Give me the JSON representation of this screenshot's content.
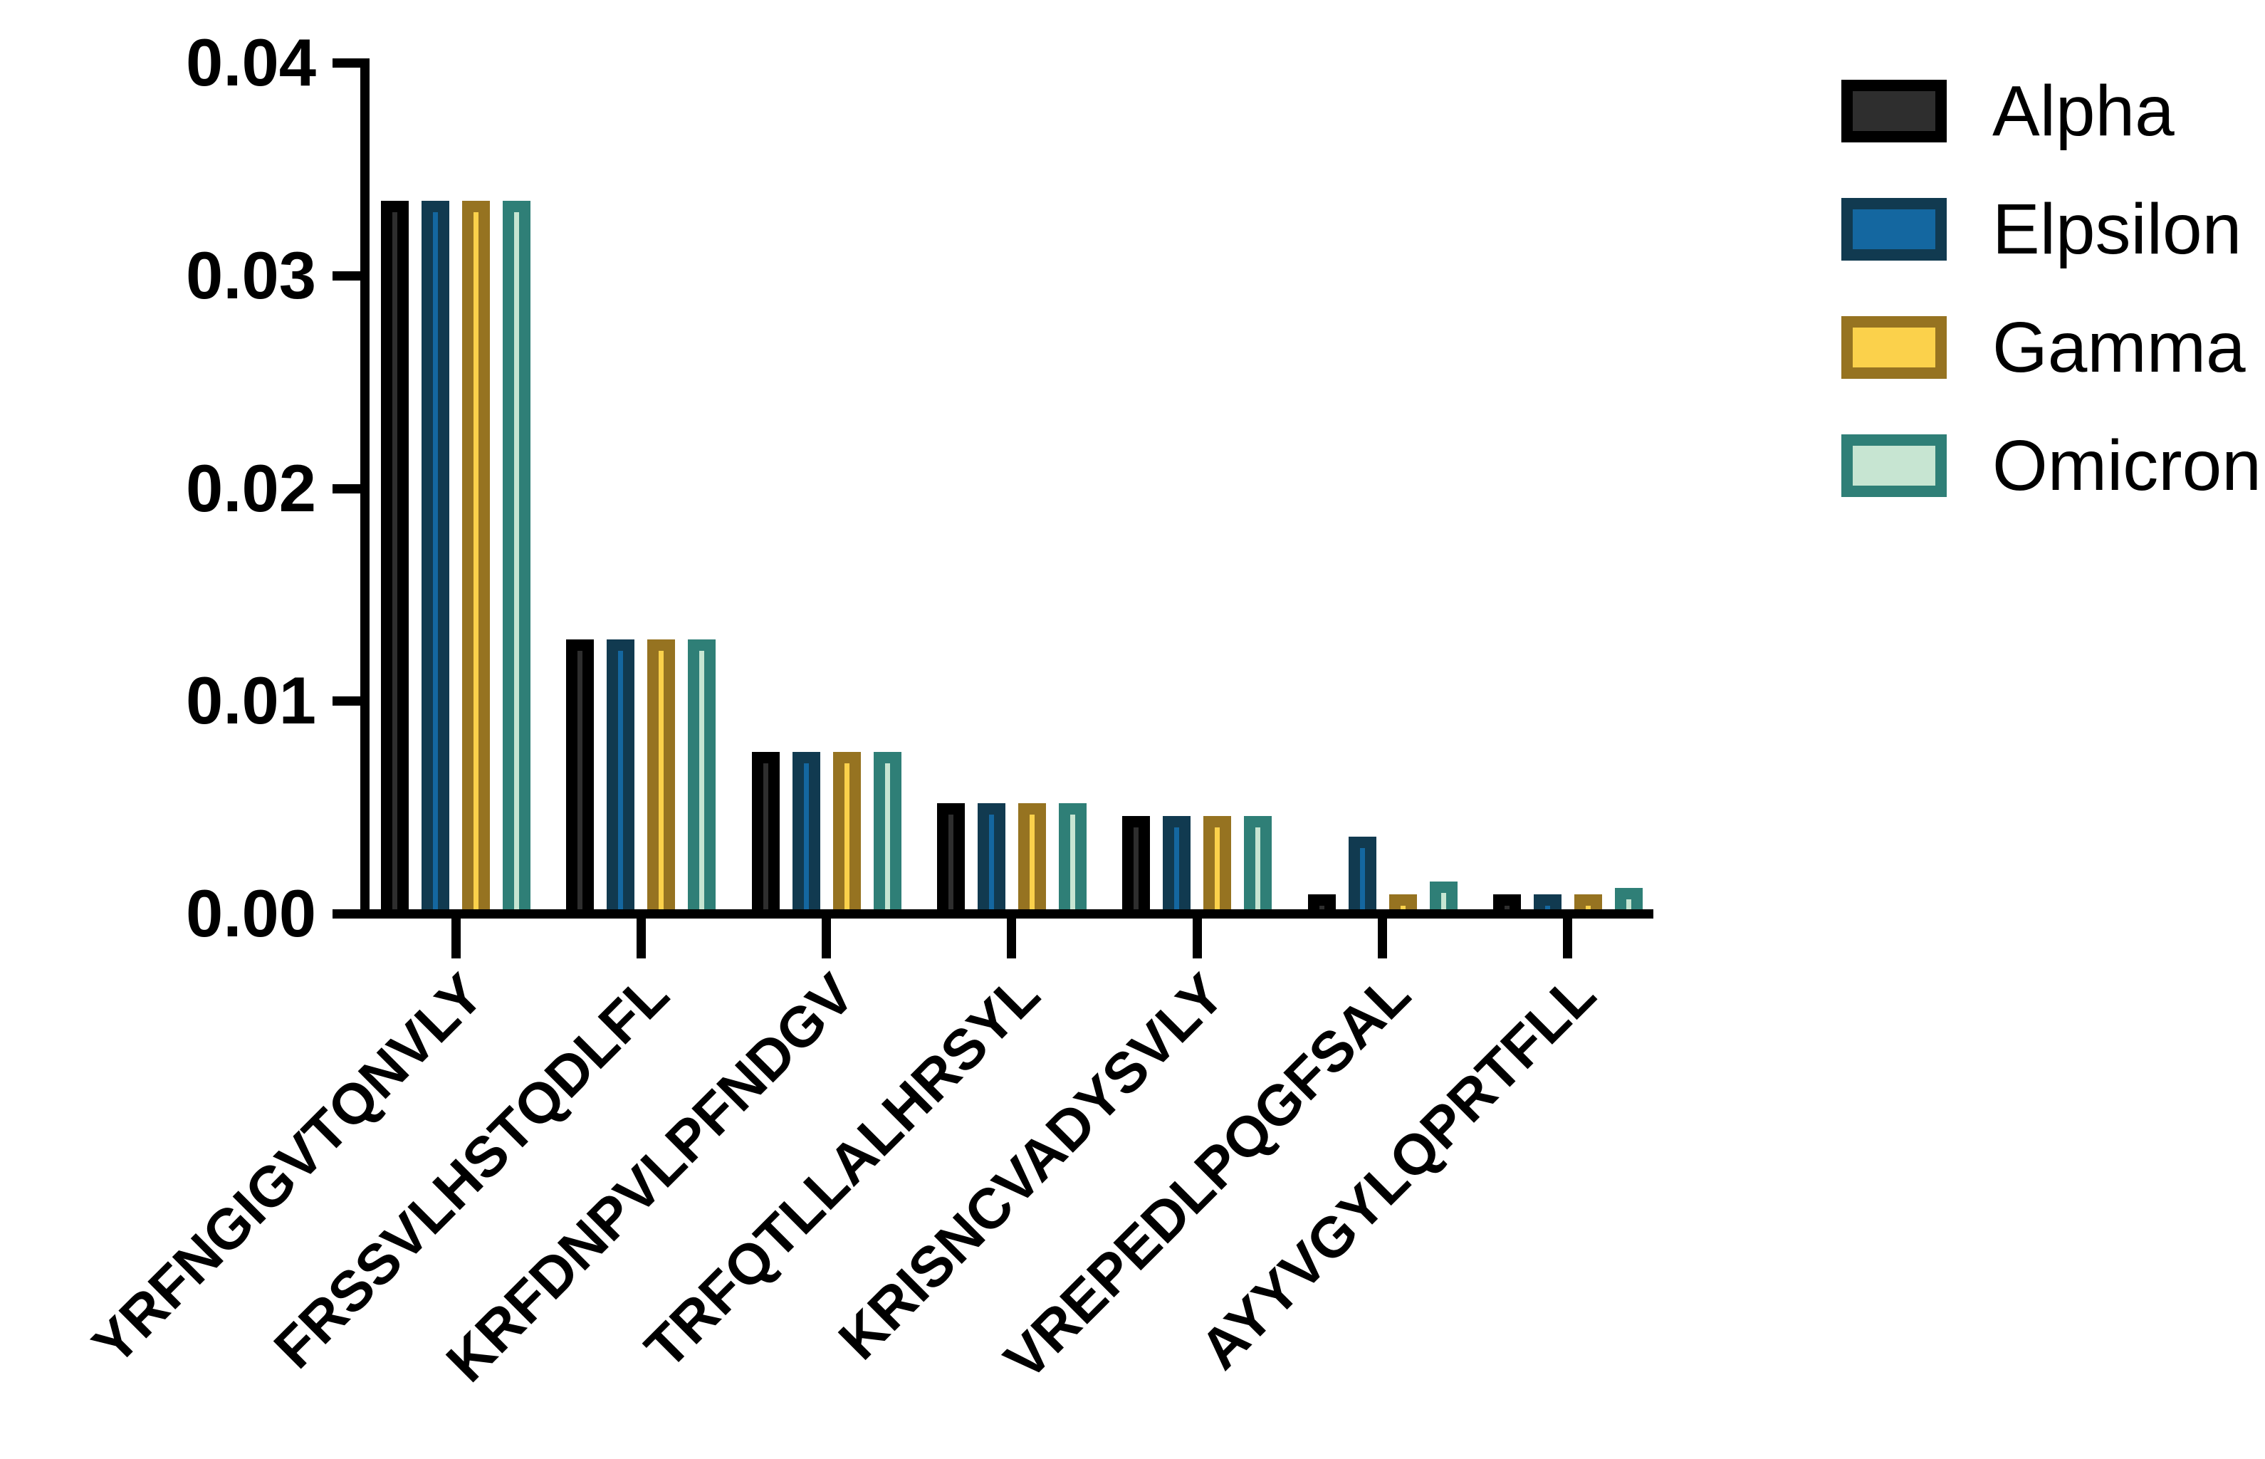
{
  "chart_data": {
    "type": "bar",
    "title": "",
    "xlabel": "",
    "ylabel": "",
    "categories": [
      "YRFNGIGVTQNVLY",
      "FRSSVLHSTQDLFL",
      "KRFDNPVLPFNDGV",
      "TRFQTLLALHRSYL",
      "KRISNCVADYSVLY",
      "VREPEDLPQGFSAL",
      "AYYVGYLQPRTFLL"
    ],
    "series": [
      {
        "name": "Alpha",
        "border_color": "#000000",
        "fill_color": "#2e2e2e",
        "values": [
          0.0333,
          0.0127,
          0.0074,
          0.005,
          0.0044,
          0.0007,
          0.0007
        ]
      },
      {
        "name": "Elpsilon",
        "border_color": "#113a50",
        "fill_color": "#1467a0",
        "values": [
          0.0333,
          0.0127,
          0.0074,
          0.005,
          0.0044,
          0.0034,
          0.0007
        ]
      },
      {
        "name": "Gamma",
        "border_color": "#967321",
        "fill_color": "#fbd14b",
        "values": [
          0.0333,
          0.0127,
          0.0074,
          0.005,
          0.0044,
          0.0007,
          0.0007
        ]
      },
      {
        "name": "Omicron",
        "border_color": "#2f7f77",
        "fill_color": "#c7e5d2",
        "values": [
          0.0333,
          0.0127,
          0.0074,
          0.005,
          0.0044,
          0.0013,
          0.001
        ]
      }
    ],
    "y_ticks": [
      {
        "value": 0.0,
        "label": "0.00"
      },
      {
        "value": 0.01,
        "label": "0.01"
      },
      {
        "value": 0.02,
        "label": "0.02"
      },
      {
        "value": 0.03,
        "label": "0.03"
      },
      {
        "value": 0.04,
        "label": "0.04"
      }
    ],
    "ylim": [
      0,
      0.04
    ],
    "grid": false,
    "legend_position": "top-right",
    "axis_color": "#000000",
    "background_color": "#ffffff"
  }
}
